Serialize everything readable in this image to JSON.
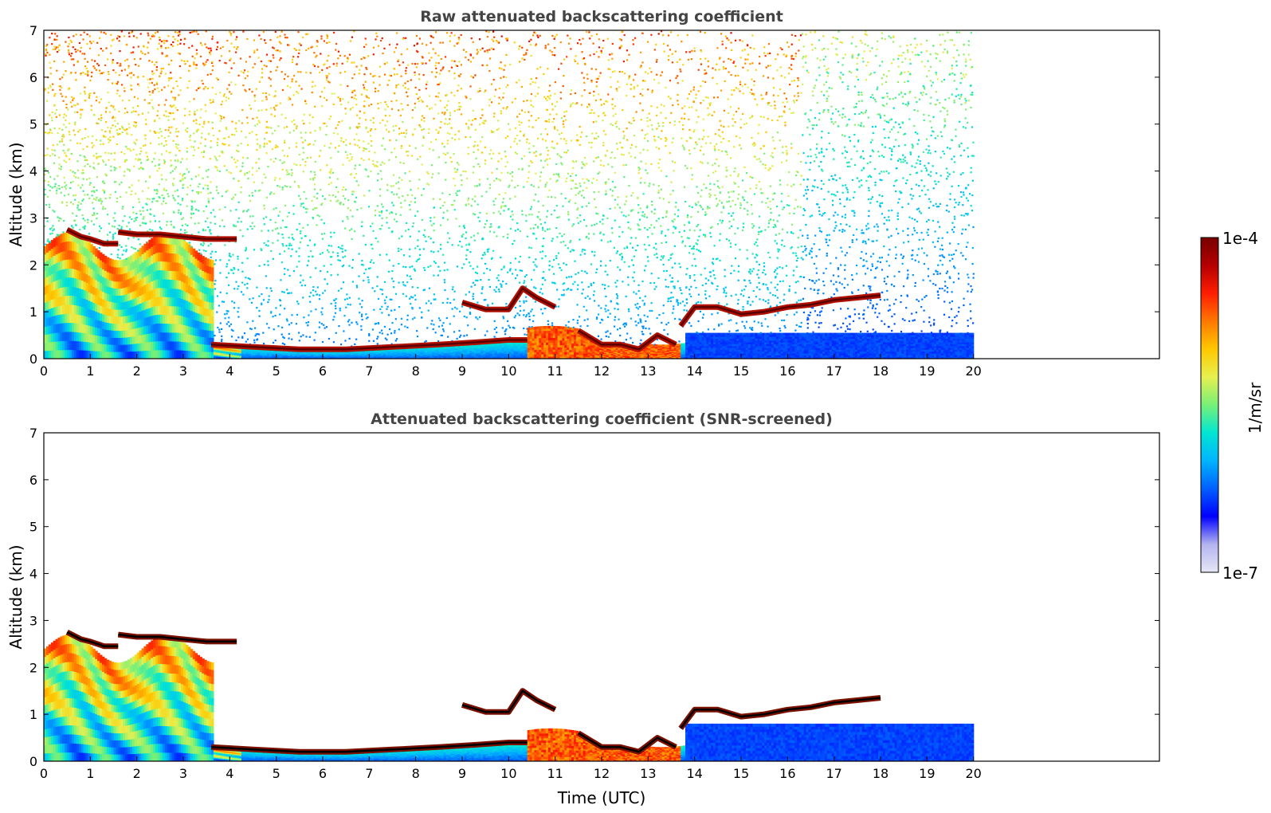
{
  "chart_data": [
    {
      "type": "heatmap",
      "title": "Raw attenuated backscattering coefficient",
      "ylabel": "Altitude (km)",
      "xlabel": "",
      "xlim": [
        0,
        24
      ],
      "ylim": [
        0,
        7
      ],
      "xticks": [
        "0",
        "1",
        "2",
        "3",
        "4",
        "5",
        "6",
        "7",
        "8",
        "9",
        "10",
        "11",
        "12",
        "13",
        "14",
        "15",
        "16",
        "17",
        "18",
        "19",
        "20"
      ],
      "yticks": [
        "0",
        "1",
        "2",
        "3",
        "4",
        "5",
        "6",
        "7"
      ],
      "data_time_range": [
        0,
        20
      ],
      "screened": false,
      "cloud_layers": [
        {
          "t": [
            1.6,
            2.0,
            2.5,
            3.0,
            3.5,
            4.15
          ],
          "h": [
            2.7,
            2.65,
            2.65,
            2.6,
            2.55,
            2.55
          ]
        },
        {
          "t": [
            0.5,
            0.8,
            1.0,
            1.3,
            1.6
          ],
          "h": [
            2.75,
            2.6,
            2.55,
            2.45,
            2.45
          ]
        },
        {
          "t": [
            3.6,
            4.5,
            5.5,
            6.5,
            7.5,
            8.5,
            9.3,
            10.0,
            10.4
          ],
          "h": [
            0.3,
            0.25,
            0.2,
            0.2,
            0.25,
            0.3,
            0.35,
            0.4,
            0.4
          ]
        },
        {
          "t": [
            9.0,
            9.5,
            10.0,
            10.3,
            10.6,
            11.0
          ],
          "h": [
            1.2,
            1.05,
            1.05,
            1.5,
            1.3,
            1.1
          ]
        },
        {
          "t": [
            11.5,
            12.0,
            12.4,
            12.8,
            13.2,
            13.6
          ],
          "h": [
            0.6,
            0.3,
            0.3,
            0.2,
            0.5,
            0.3
          ]
        },
        {
          "t": [
            13.7,
            14.0,
            14.5,
            15.0,
            15.5,
            16.0,
            16.5,
            17.0,
            17.5,
            18.0
          ],
          "h": [
            0.7,
            1.1,
            1.1,
            0.95,
            1.0,
            1.1,
            1.15,
            1.25,
            1.3,
            1.35
          ]
        }
      ]
    },
    {
      "type": "heatmap",
      "title": "Attenuated backscattering coefficient (SNR-screened)",
      "ylabel": "Altitude (km)",
      "xlabel": "Time (UTC)",
      "xlim": [
        0,
        24
      ],
      "ylim": [
        0,
        7
      ],
      "xticks": [
        "0",
        "1",
        "2",
        "3",
        "4",
        "5",
        "6",
        "7",
        "8",
        "9",
        "10",
        "11",
        "12",
        "13",
        "14",
        "15",
        "16",
        "17",
        "18",
        "19",
        "20"
      ],
      "yticks": [
        "0",
        "1",
        "2",
        "3",
        "4",
        "5",
        "6",
        "7"
      ],
      "data_time_range": [
        0,
        20
      ],
      "screened": true,
      "cloud_layers": [
        {
          "t": [
            1.6,
            2.0,
            2.5,
            3.0,
            3.5,
            4.15
          ],
          "h": [
            2.7,
            2.65,
            2.65,
            2.6,
            2.55,
            2.55
          ]
        },
        {
          "t": [
            0.5,
            0.8,
            1.0,
            1.3,
            1.6
          ],
          "h": [
            2.75,
            2.6,
            2.55,
            2.45,
            2.45
          ]
        },
        {
          "t": [
            3.6,
            4.5,
            5.5,
            6.5,
            7.5,
            8.5,
            9.3,
            10.0,
            10.4
          ],
          "h": [
            0.3,
            0.25,
            0.2,
            0.2,
            0.25,
            0.3,
            0.35,
            0.4,
            0.4
          ]
        },
        {
          "t": [
            9.0,
            9.5,
            10.0,
            10.3,
            10.6,
            11.0
          ],
          "h": [
            1.2,
            1.05,
            1.05,
            1.5,
            1.3,
            1.1
          ]
        },
        {
          "t": [
            11.5,
            12.0,
            12.4,
            12.8,
            13.2,
            13.6
          ],
          "h": [
            0.6,
            0.3,
            0.3,
            0.2,
            0.5,
            0.3
          ]
        },
        {
          "t": [
            13.7,
            14.0,
            14.5,
            15.0,
            15.5,
            16.0,
            16.5,
            17.0,
            17.5,
            18.0
          ],
          "h": [
            0.7,
            1.1,
            1.1,
            0.95,
            1.0,
            1.1,
            1.15,
            1.25,
            1.3,
            1.35
          ]
        }
      ]
    }
  ],
  "colorbar": {
    "label": "1/m/sr",
    "max_label": "1e-4",
    "min_label": "1e-7",
    "scale": "log",
    "range": [
      1e-07,
      0.0001
    ],
    "colormap": [
      "#e6e6f5",
      "#b4b4f0",
      "#0000ff",
      "#0060ff",
      "#00b4ff",
      "#00e6d2",
      "#78f078",
      "#e6f050",
      "#ffc800",
      "#ff7800",
      "#ff1e00",
      "#b40000",
      "#780000"
    ]
  }
}
